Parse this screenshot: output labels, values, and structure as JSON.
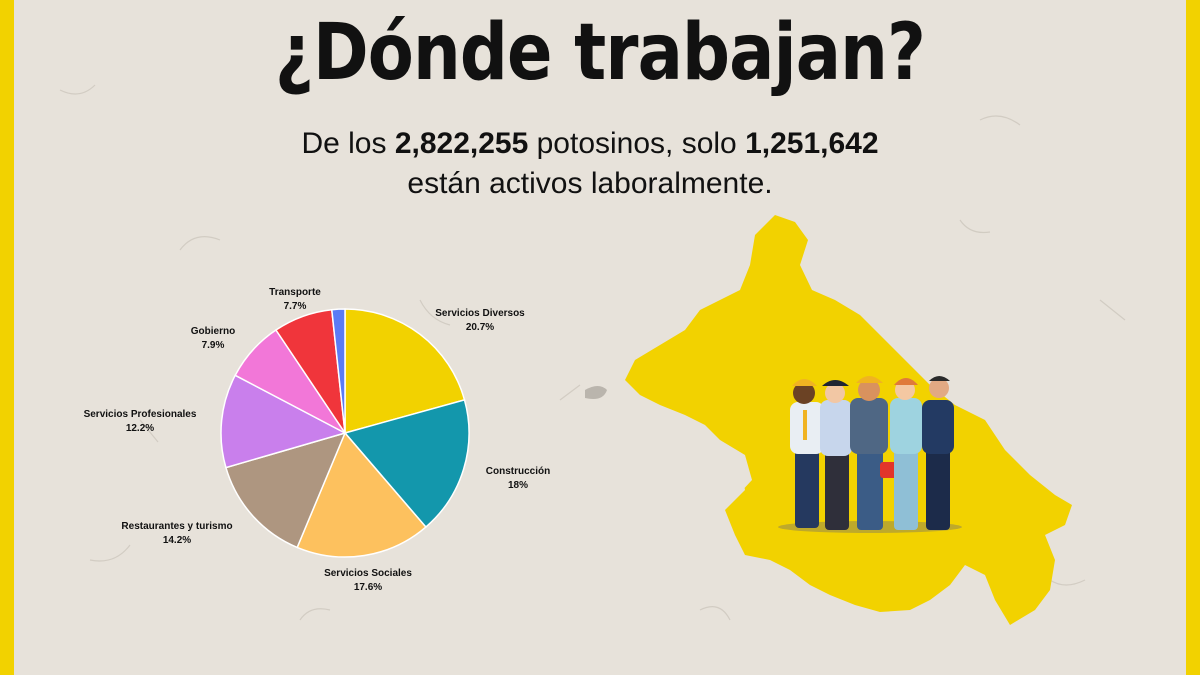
{
  "header": {
    "title": "¿Dónde trabajan?",
    "subtitle_prefix": "De los ",
    "total_population": "2,822,255",
    "subtitle_mid": " potosinos, solo ",
    "active_population": "1,251,642",
    "subtitle_line2": "están activos laboralmente."
  },
  "colors": {
    "frame": "#f2d200",
    "background": "#e7e2da",
    "map": "#f2d200"
  },
  "chart_data": {
    "type": "pie",
    "title": "",
    "slices": [
      {
        "label": "Servicios Diversos",
        "value_label": "20.7%",
        "value": 20.7,
        "color": "#f2d200"
      },
      {
        "label": "Construcción",
        "value_label": "18%",
        "value": 18.0,
        "color": "#1397ac"
      },
      {
        "label": "Servicios Sociales",
        "value_label": "17.6%",
        "value": 17.6,
        "color": "#fdc15e"
      },
      {
        "label": "Restaurantes y turismo",
        "value_label": "14.2%",
        "value": 14.2,
        "color": "#ae9680"
      },
      {
        "label": "Servicios Profesionales",
        "value_label": "12.2%",
        "value": 12.2,
        "color": "#c97fec"
      },
      {
        "label": "Gobierno",
        "value_label": "7.9%",
        "value": 7.9,
        "color": "#f277d8"
      },
      {
        "label": "Transporte",
        "value_label": "7.7%",
        "value": 7.7,
        "color": "#f0353b"
      },
      {
        "label": "",
        "value_label": "",
        "value": 1.7,
        "color": "#5b7bf5"
      }
    ]
  },
  "illustration": {
    "map": "san-luis-potosi-state-map",
    "figure": "group-of-workers-illustration"
  }
}
